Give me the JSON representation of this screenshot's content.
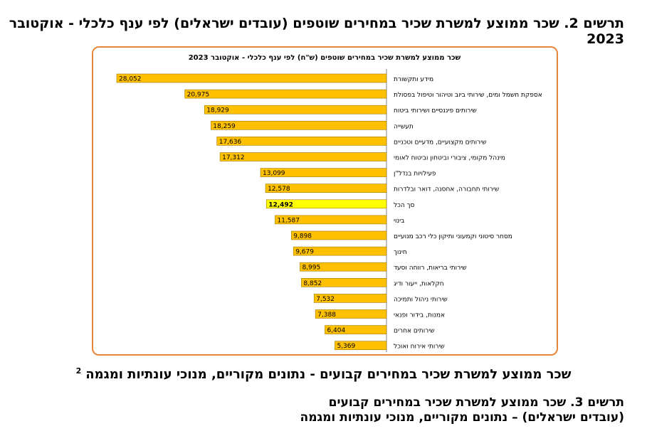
{
  "figure2": {
    "title": "תרשים 2. שכר ממוצע למשרת שכיר במחירים שוטפים (עובדים ישראלים) לפי ענף כלכלי - אוקטובר 2023"
  },
  "section": {
    "title": "שכר ממוצע למשרת שכיר במחירים קבועים - נתונים מקוריים, מנוכי עונתיות ומגמה",
    "footnote": "2"
  },
  "figure3": {
    "title": "תרשים 3. שכר ממוצע למשרת שכיר במחירים קבועים (עובדים ישראלים) – נתונים מקוריים, מנוכי עונתיות ומגמה"
  },
  "colors": {
    "bar": "#ffc000",
    "bar_total": "#ffff00",
    "bar_border": "#a07800",
    "frame": "#e8873a"
  },
  "chart_data": {
    "type": "bar",
    "orientation": "horizontal",
    "title": "שכר ממוצע למשרת שכיר במחירים שוטפים (ש\"ח) לפי ענף כלכלי - אוקטובר 2023",
    "categories": [
      "מידע ותקשורת",
      "אספקת חשמל ומים, שירותי ביוב וטיהור וטיפול בפסולת",
      "שירותים פיננסיים ושירותי ביטוח",
      "תעשייה",
      "שירותים מקצועיים, מדעיים וטכניים",
      "מינהל מקומי, ציבורי וביטחון וביטוח לאומי",
      "פעילויות בנדל\"ן",
      "שירותי תחבורה, אחסנה, דואר ובלדרות",
      "סך הכל",
      "בינוי",
      "מסחר סיטוני וקמעוני ותיקון כלי רכב מנועיים",
      "חינוך",
      "שירותי בריאות, רווחה וסעד",
      "חקלאות, ייעור ודיג",
      "שירותי ניהול ותמיכה",
      "אמנות, בידור ופנאי",
      "שירותים אחרים",
      "שירותי אירוח ואוכל"
    ],
    "values": [
      28052,
      20975,
      18929,
      18259,
      17636,
      17312,
      13099,
      12578,
      12492,
      11587,
      9898,
      9679,
      8995,
      8852,
      7532,
      7388,
      6404,
      5369
    ],
    "value_labels": [
      "28,052",
      "20,975",
      "18,929",
      "18,259",
      "17,636",
      "17,312",
      "13,099",
      "12,578",
      "12,492",
      "11,587",
      "9,898",
      "9,679",
      "8,995",
      "8,852",
      "7,532",
      "7,388",
      "6,404",
      "5,369"
    ],
    "highlight_category": "סך הכל",
    "direction": "bars extend leftward from category axis",
    "grid": false,
    "legend": "none"
  }
}
